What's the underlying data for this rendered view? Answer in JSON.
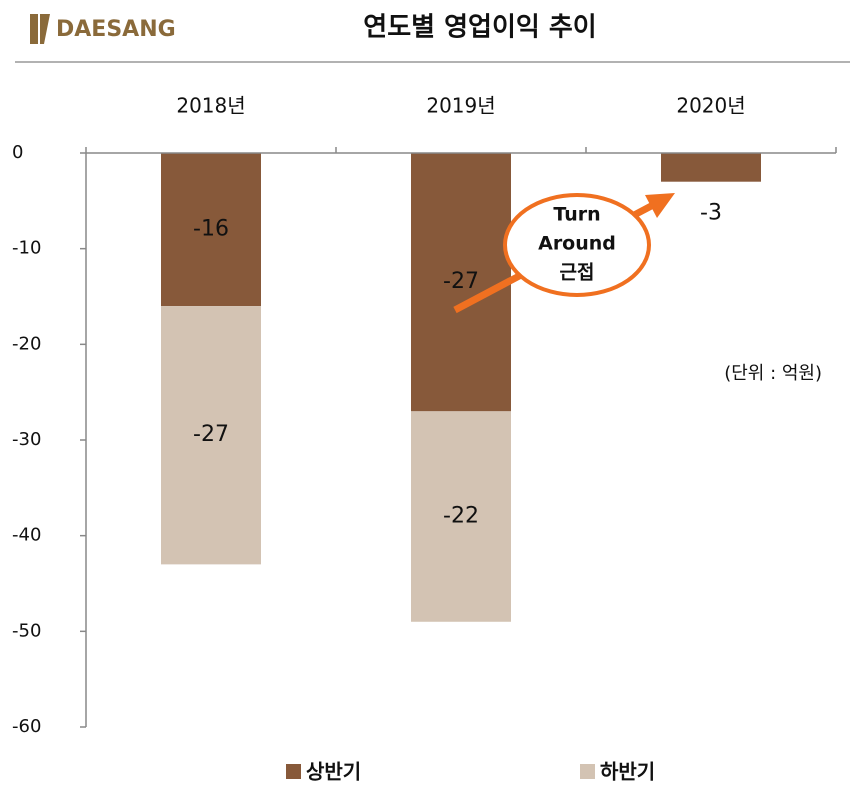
{
  "header": {
    "logo": "DAESANG"
  },
  "chart_data": {
    "type": "bar",
    "stacked": true,
    "title": "연도별 영업이익 추이",
    "categories": [
      "2018년",
      "2019년",
      "2020년"
    ],
    "series": [
      {
        "name": "상반기",
        "color": "#87593a",
        "values": [
          -16,
          -27,
          -3
        ]
      },
      {
        "name": "하반기",
        "color": "#d3c3b3",
        "values": [
          -27,
          -22,
          null
        ]
      }
    ],
    "ylim": [
      -60,
      0
    ],
    "yticks": [
      0,
      -10,
      -20,
      -30,
      -40,
      -50,
      -60
    ],
    "unit_note": "(단위 : 억원)",
    "annotation": [
      "Turn",
      "Around",
      "근접"
    ]
  }
}
